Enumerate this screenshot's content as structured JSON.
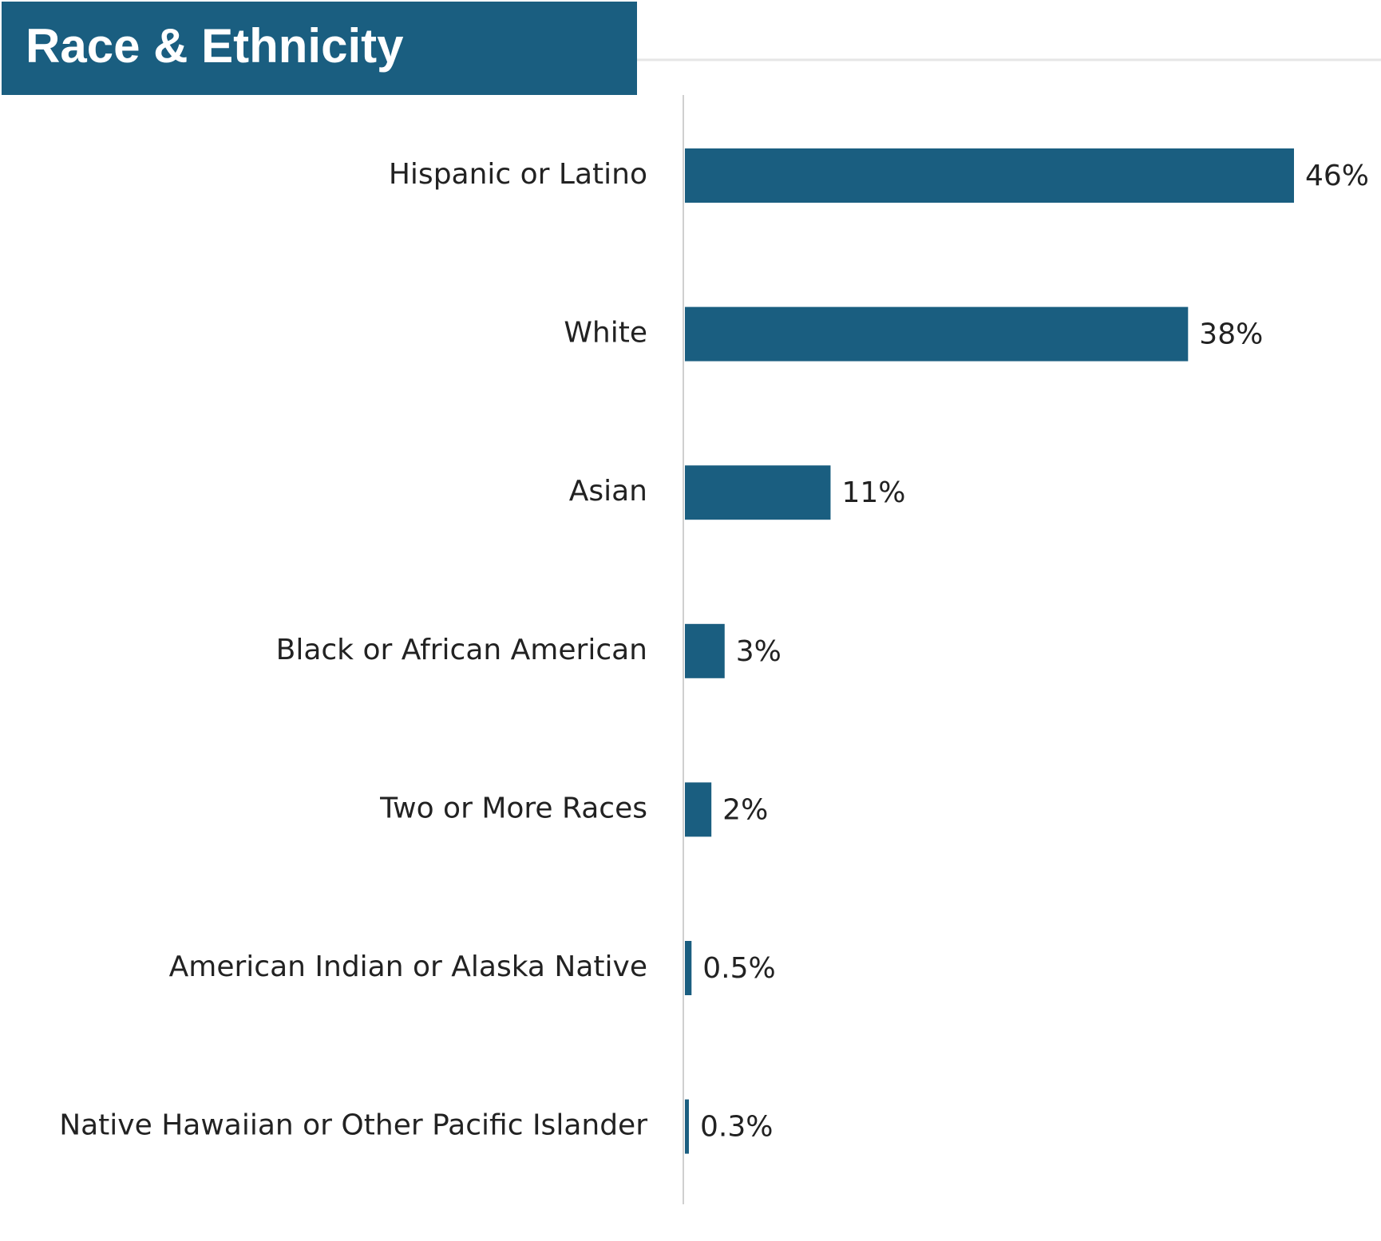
{
  "chart_data": {
    "type": "bar",
    "orientation": "horizontal",
    "title": "Race & Ethnicity",
    "categories": [
      "Hispanic or Latino",
      "White",
      "Asian",
      "Black or African American",
      "Two or More Races",
      "American Indian or Alaska Native",
      "Native Hawaiian or Other Pacific Islander"
    ],
    "values": [
      46,
      38,
      11,
      3,
      2,
      0.5,
      0.3
    ],
    "value_labels": [
      "46%",
      "38%",
      "11%",
      "3%",
      "2%",
      "0.5%",
      "0.3%"
    ],
    "color": "#1a5e80"
  }
}
